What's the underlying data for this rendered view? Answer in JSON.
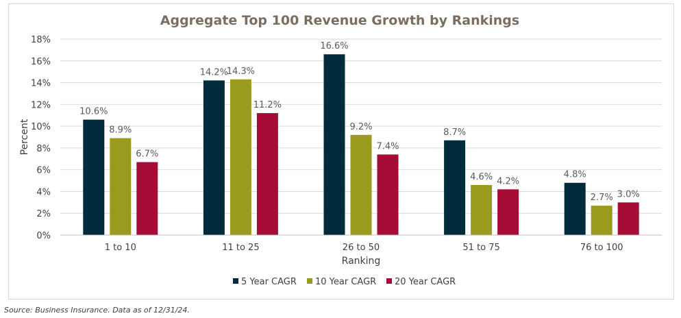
{
  "chart_data": {
    "type": "bar",
    "title": "Aggregate Top 100 Revenue Growth by Rankings",
    "xlabel": "Ranking",
    "ylabel": "Percent",
    "ylim": [
      0,
      18
    ],
    "yticks": [
      "0%",
      "2%",
      "4%",
      "6%",
      "8%",
      "10%",
      "12%",
      "14%",
      "16%",
      "18%"
    ],
    "categories": [
      "1 to 10",
      "11 to 25",
      "26 to 50",
      "51 to 75",
      "76 to 100"
    ],
    "series": [
      {
        "name": "5 Year CAGR",
        "color": "#002b3d",
        "values": [
          10.6,
          14.2,
          16.6,
          8.7,
          4.8
        ]
      },
      {
        "name": "10 Year CAGR",
        "color": "#9a9a1e",
        "values": [
          8.9,
          14.3,
          9.2,
          4.6,
          2.7
        ]
      },
      {
        "name": "20 Year CAGR",
        "color": "#a50d36",
        "values": [
          6.7,
          11.2,
          7.4,
          4.2,
          3.0
        ]
      }
    ],
    "data_labels": [
      [
        "10.6%",
        "14.2%",
        "16.6%",
        "8.7%",
        "4.8%"
      ],
      [
        "8.9%",
        "14.3%",
        "9.2%",
        "4.6%",
        "2.7%"
      ],
      [
        "6.7%",
        "11.2%",
        "7.4%",
        "4.2%",
        "3.0%"
      ]
    ],
    "grid": true,
    "legend_position": "bottom"
  },
  "footer": {
    "source": "Source: Business Insurance. Data as of 12/31/24."
  }
}
